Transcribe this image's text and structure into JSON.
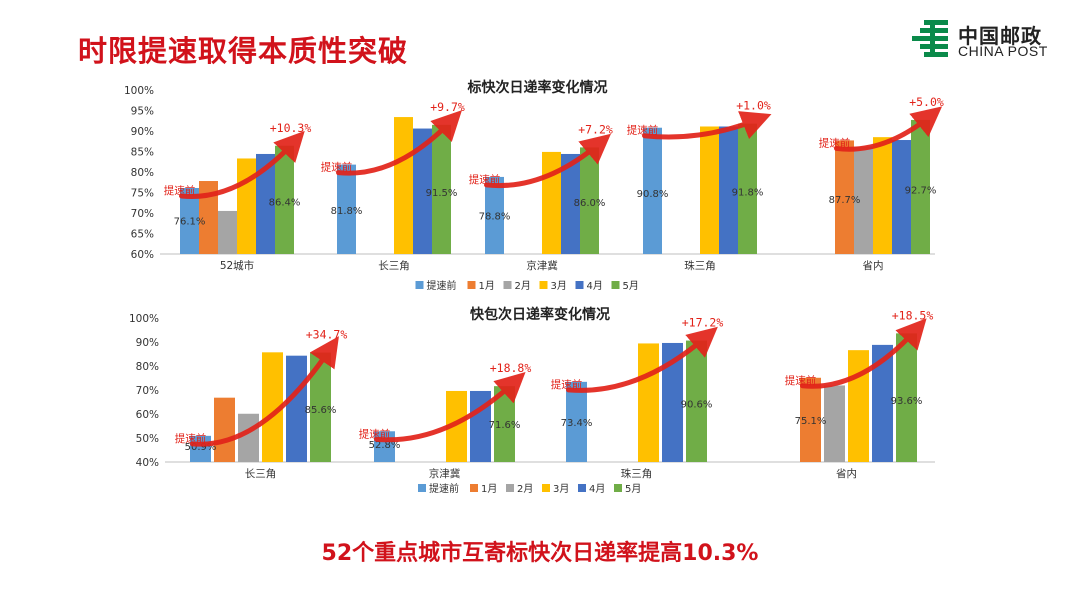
{
  "slide": {
    "title": "时限提速取得本质性突破",
    "conclusion": "52个重点城市互寄标快次日递率提高10.3%"
  },
  "logo": {
    "name_cn": "中国邮政",
    "name_en": "CHINA POST",
    "color": "#0a8a4a"
  },
  "colors": {
    "title_red": "#d1121b",
    "arrow_red": "#e2231a",
    "series": [
      "#5b9bd5",
      "#ed7d31",
      "#a5a5a5",
      "#ffc000",
      "#4472c4",
      "#70ad47"
    ]
  },
  "chart_data": [
    {
      "type": "bar",
      "title": "标快次日递率变化情况",
      "categories": [
        "52城市",
        "长三角",
        "京津冀",
        "珠三角",
        "省内"
      ],
      "series": [
        {
          "name": "提速前",
          "values": [
            76.1,
            81.8,
            78.8,
            90.8,
            null
          ]
        },
        {
          "name": "1月",
          "values": [
            77.8,
            null,
            null,
            null,
            87.7
          ]
        },
        {
          "name": "2月",
          "values": [
            70.5,
            null,
            null,
            null,
            86.2
          ]
        },
        {
          "name": "3月",
          "values": [
            83.3,
            93.4,
            84.9,
            91.1,
            88.5
          ]
        },
        {
          "name": "4月",
          "values": [
            84.4,
            90.6,
            84.4,
            91.1,
            87.8
          ]
        },
        {
          "name": "5月",
          "values": [
            86.4,
            91.5,
            86.0,
            91.8,
            92.7
          ]
        }
      ],
      "ylim": [
        60,
        100
      ],
      "yticks": [
        "60%",
        "65%",
        "70%",
        "75%",
        "80%",
        "85%",
        "90%",
        "95%",
        "100%"
      ],
      "grid": false,
      "legend": "bottom",
      "annotations": {
        "increase_labels": [
          "+10.3%",
          "+9.7%",
          "+7.2%",
          "+1.0%",
          "+5.0%"
        ],
        "baseline_label": "提速前",
        "baseline_values": [
          "76.1%",
          "81.8%",
          "78.8%",
          "90.8%",
          "87.7%"
        ],
        "may_values": [
          "86.4%",
          "91.5%",
          "86.0%",
          "91.8%",
          "92.7%"
        ]
      }
    },
    {
      "type": "bar",
      "title": "快包次日递率变化情况",
      "categories": [
        "长三角",
        "京津冀",
        "珠三角",
        "省内"
      ],
      "series": [
        {
          "name": "提速前",
          "values": [
            50.9,
            52.8,
            73.4,
            null
          ]
        },
        {
          "name": "1月",
          "values": [
            66.8,
            null,
            null,
            75.1
          ]
        },
        {
          "name": "2月",
          "values": [
            60.1,
            null,
            null,
            71.9
          ]
        },
        {
          "name": "3月",
          "values": [
            85.7,
            69.6,
            89.4,
            86.6
          ]
        },
        {
          "name": "4月",
          "values": [
            84.3,
            69.6,
            89.6,
            88.8
          ]
        },
        {
          "name": "5月",
          "values": [
            85.6,
            71.6,
            90.6,
            93.6
          ]
        }
      ],
      "ylim": [
        40,
        100
      ],
      "yticks": [
        "40%",
        "50%",
        "60%",
        "70%",
        "80%",
        "90%",
        "100%"
      ],
      "grid": false,
      "legend": "bottom",
      "annotations": {
        "increase_labels": [
          "+34.7%",
          "+18.8%",
          "+17.2%",
          "+18.5%"
        ],
        "baseline_label": "提速前",
        "baseline_values": [
          "50.9%",
          "52.8%",
          "73.4%",
          "75.1%"
        ],
        "may_values": [
          "85.6%",
          "71.6%",
          "90.6%",
          "93.6%"
        ]
      }
    }
  ]
}
